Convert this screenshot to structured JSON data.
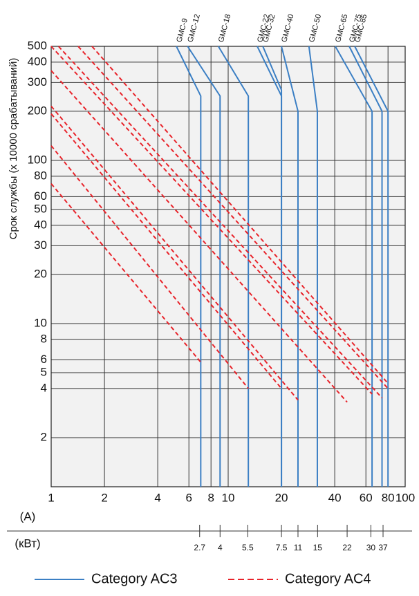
{
  "chart_data": {
    "type": "line",
    "ylabel": "Срок службы (x 10000 срабатываний)",
    "xlabel": "(A)",
    "xlog": true,
    "ylog": true,
    "grid": true,
    "xlim": [
      1,
      100
    ],
    "ylim": [
      1,
      500
    ],
    "xticks": [
      1,
      2,
      4,
      6,
      8,
      10,
      20,
      40,
      60,
      80,
      100
    ],
    "yticks": [
      2,
      4,
      5,
      6,
      8,
      10,
      20,
      30,
      40,
      50,
      60,
      80,
      100,
      200,
      300,
      400,
      500
    ],
    "kw_scale": {
      "label": "(кВт)",
      "ticks": [
        {
          "value": 6.9,
          "label": "2.7"
        },
        {
          "value": 9,
          "label": "4"
        },
        {
          "value": 12.9,
          "label": "5.5"
        },
        {
          "value": 20,
          "label": "7.5"
        },
        {
          "value": 24.8,
          "label": "11"
        },
        {
          "value": 32,
          "label": "15"
        },
        {
          "value": 47,
          "label": "22"
        },
        {
          "value": 64,
          "label": "30"
        },
        {
          "value": 75,
          "label": "37"
        }
      ]
    },
    "legend": "bottom",
    "series": [
      {
        "name": "Category AC3",
        "color": "#3b7fc4",
        "dash": false,
        "lines": [
          {
            "label": "GMC-9",
            "x": [
              5.1,
              7,
              7
            ],
            "y": [
              500,
              248,
              1
            ]
          },
          {
            "label": "GMC-12",
            "x": [
              5.9,
              9,
              9
            ],
            "y": [
              500,
              248,
              1
            ]
          },
          {
            "label": "GMC-18",
            "x": [
              8.8,
              13,
              13
            ],
            "y": [
              500,
              248,
              1
            ]
          },
          {
            "label": "GMC-22",
            "x": [
              14.6,
              20,
              20
            ],
            "y": [
              500,
              248,
              1
            ]
          },
          {
            "label": "GMC-32",
            "x": [
              15.7,
              20,
              20
            ],
            "y": [
              500,
              270,
              1
            ]
          },
          {
            "label": "GMC-40",
            "x": [
              20,
              24.8,
              24.8
            ],
            "y": [
              500,
              200,
              1
            ]
          },
          {
            "label": "GMC-50",
            "x": [
              28.6,
              31.9,
              31.9
            ],
            "y": [
              500,
              200,
              1
            ]
          },
          {
            "label": "GMC-65",
            "x": [
              40.3,
              65,
              65
            ],
            "y": [
              500,
              200,
              1
            ]
          },
          {
            "label": "GMC-75",
            "x": [
              48.3,
              74,
              74
            ],
            "y": [
              500,
              200,
              1
            ]
          },
          {
            "label": "GMC-85",
            "x": [
              51.9,
              80,
              80
            ],
            "y": [
              500,
              200,
              1
            ]
          }
        ]
      },
      {
        "name": "Category AC4",
        "color": "#e8232a",
        "dash": true,
        "lines": [
          {
            "x": [
              1,
              7
            ],
            "y": [
              72,
              5.8
            ]
          },
          {
            "x": [
              1,
              13
            ],
            "y": [
              123,
              4
            ]
          },
          {
            "x": [
              1,
              20
            ],
            "y": [
              193,
              4
            ]
          },
          {
            "x": [
              1,
              24.8
            ],
            "y": [
              215,
              3.4
            ]
          },
          {
            "x": [
              1,
              47
            ],
            "y": [
              355,
              3.3
            ]
          },
          {
            "x": [
              1,
              65
            ],
            "y": [
              500,
              3.7
            ]
          },
          {
            "x": [
              1.1,
              74
            ],
            "y": [
              500,
              3.5
            ]
          },
          {
            "x": [
              1.42,
              80
            ],
            "y": [
              500,
              4
            ]
          },
          {
            "x": [
              1.7,
              80
            ],
            "y": [
              500,
              4.3
            ]
          }
        ]
      }
    ]
  }
}
